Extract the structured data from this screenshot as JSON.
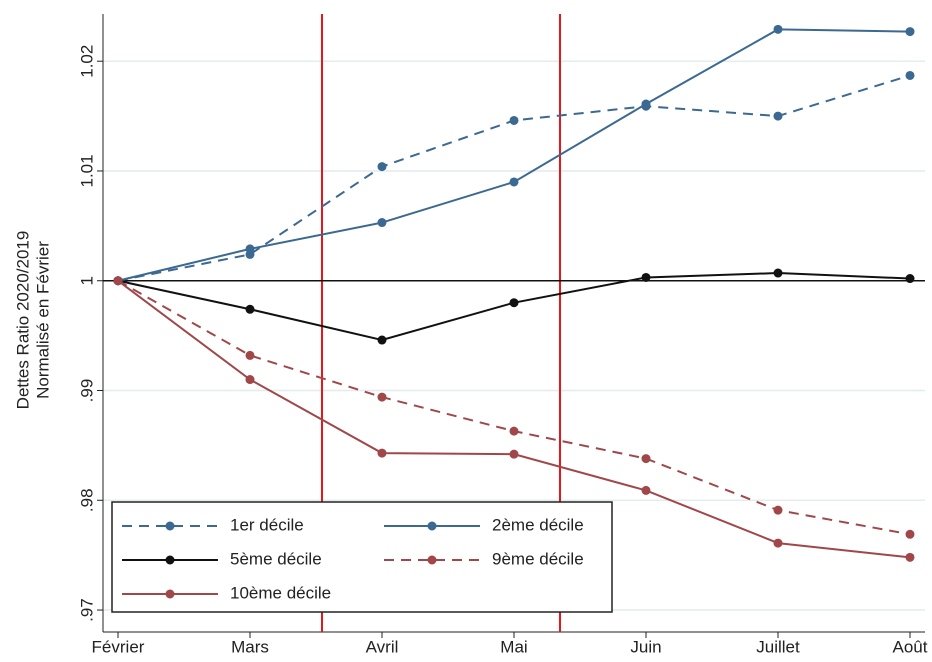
{
  "chart_data": {
    "type": "line",
    "ylabel": [
      "Dettes Ratio 2020/2019",
      "Normalisé en Février"
    ],
    "categories": [
      "Février",
      "Mars",
      "Avril",
      "Mai",
      "Juin",
      "Juillet",
      "Août"
    ],
    "series": [
      {
        "name": "1er décile",
        "color": "#3b6991",
        "dash": true,
        "values": [
          1,
          1.0024,
          1.0104,
          1.0146,
          1.0159,
          1.015,
          1.0187
        ]
      },
      {
        "name": "2ème décile",
        "color": "#3b6991",
        "dash": false,
        "values": [
          1,
          1.0029,
          1.0053,
          1.009,
          1.0161,
          1.0229,
          1.0227
        ]
      },
      {
        "name": "5ème décile",
        "color": "#111111",
        "dash": false,
        "values": [
          1,
          0.9974,
          0.9946,
          0.998,
          1.0003,
          1.0007,
          1.0002
        ]
      },
      {
        "name": "9ème décile",
        "color": "#a0474a",
        "dash": true,
        "values": [
          1,
          0.9932,
          0.9894,
          0.9863,
          0.9838,
          0.9791,
          0.9769
        ]
      },
      {
        "name": "10ème décile",
        "color": "#a0474a",
        "dash": false,
        "values": [
          1,
          0.991,
          0.9843,
          0.9842,
          0.9809,
          0.9761,
          0.9748
        ]
      }
    ],
    "ylim": [
      0.968,
      1.0243
    ],
    "yticks": [
      {
        "value": 0.97,
        "label": ".97"
      },
      {
        "value": 0.98,
        "label": ".98"
      },
      {
        "value": 0.99,
        "label": ".99"
      },
      1,
      1.01,
      1.02
    ],
    "hline": 1,
    "grid": true
  }
}
